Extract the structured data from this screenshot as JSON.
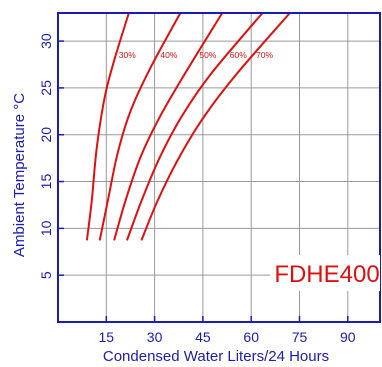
{
  "chart_data": {
    "type": "line",
    "model": "FDHE400",
    "xlabel": "Condensed Water Liters/24 Hours",
    "ylabel": "Ambient Temperature °C",
    "x_ticks": [
      "15",
      "30",
      "45",
      "60",
      "75",
      "90"
    ],
    "y_ticks": [
      "5",
      "10",
      "15",
      "20",
      "25",
      "30"
    ],
    "xlim": [
      0,
      100
    ],
    "ylim": [
      0,
      33
    ],
    "grid": true,
    "series": [
      {
        "name": "30%",
        "points": [
          [
            9,
            8.8
          ],
          [
            10.5,
            13
          ],
          [
            12,
            18.5
          ],
          [
            14.5,
            24
          ],
          [
            17.5,
            28
          ],
          [
            22,
            33
          ]
        ]
      },
      {
        "name": "40%",
        "points": [
          [
            13,
            8.8
          ],
          [
            15.5,
            13
          ],
          [
            18.5,
            18
          ],
          [
            22.5,
            22.5
          ],
          [
            28.5,
            27
          ],
          [
            38,
            33
          ]
        ]
      },
      {
        "name": "50%",
        "points": [
          [
            17.5,
            8.8
          ],
          [
            21,
            13
          ],
          [
            25.5,
            17.5
          ],
          [
            31,
            21.5
          ],
          [
            38.5,
            26
          ],
          [
            51,
            33
          ]
        ]
      },
      {
        "name": "60%",
        "points": [
          [
            21.5,
            8.8
          ],
          [
            26,
            13
          ],
          [
            31.5,
            17.5
          ],
          [
            38.5,
            22
          ],
          [
            47.5,
            26.5
          ],
          [
            63.5,
            33
          ]
        ]
      },
      {
        "name": "70%",
        "points": [
          [
            26,
            8.8
          ],
          [
            31,
            13
          ],
          [
            37.5,
            17.5
          ],
          [
            45.5,
            22
          ],
          [
            55.5,
            26.5
          ],
          [
            72,
            33
          ]
        ]
      }
    ],
    "colors": {
      "frame": "#1c1cb4",
      "grid": "#9a9a9a",
      "curves": "#e01010",
      "text": "#1c1cb4"
    }
  }
}
